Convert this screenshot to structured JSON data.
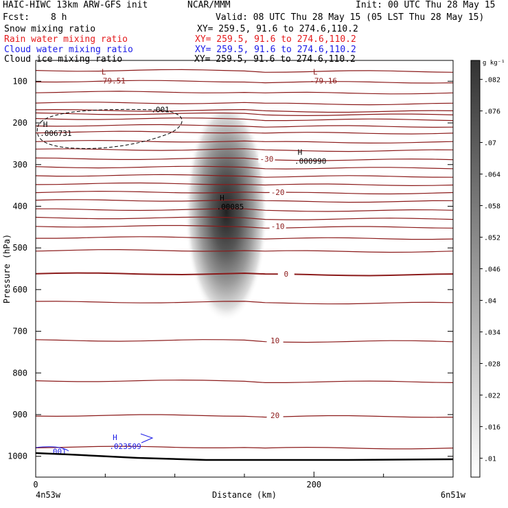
{
  "header": {
    "left_title": "HAIC-HIWC 13km ARW-GFS init",
    "center_title": "NCAR/MMM",
    "init": "Init: 00 UTC Thu 28 May 15",
    "fcst_label": "Fcst:",
    "fcst_value": "8 h",
    "valid": "Valid: 08 UTC Thu 28 May 15 (05 LST Thu 28 May 15)",
    "fields": [
      {
        "label": "Snow mixing ratio",
        "xy": "XY= 259.5, 91.6 to 274.6,110.2",
        "color": "#000000"
      },
      {
        "label": "Rain water mixing ratio",
        "xy": "XY= 259.5, 91.6 to 274.6,110.2",
        "color": "#e41a1c"
      },
      {
        "label": "Cloud water mixing ratio",
        "xy": "XY= 259.5, 91.6 to 274.6,110.2",
        "color": "#1a1ae6"
      },
      {
        "label": "Cloud ice mixing ratio",
        "xy": "XY= 259.5, 91.6 to 274.6,110.2",
        "color": "#000000"
      }
    ]
  },
  "chart_data": {
    "type": "heatmap",
    "xlabel": "Distance (km)",
    "ylabel": "Pressure (hPa)",
    "xlim": [
      0,
      300
    ],
    "ylim": [
      1050,
      50
    ],
    "x_ticks": [
      0,
      200
    ],
    "x_minor_ticks": [
      50,
      100,
      150,
      250
    ],
    "y_ticks": [
      100,
      200,
      300,
      400,
      500,
      600,
      700,
      800,
      900,
      1000
    ],
    "x_endpoint_labels": [
      "4n53w",
      "6n51w"
    ],
    "colorbar": {
      "unit": "g kg⁻¹",
      "levels": [
        ".01",
        ".016",
        ".022",
        ".028",
        ".034",
        ".04",
        ".046",
        ".052",
        ".058",
        ".064",
        ".07",
        ".076",
        ".082"
      ]
    },
    "temperature_contours": {
      "color": "#8b1a1a",
      "labels": [
        {
          "value": "-30",
          "x": 166,
          "p": 286
        },
        {
          "value": "-20",
          "x": 174,
          "p": 366
        },
        {
          "value": "-10",
          "x": 174,
          "p": 448
        },
        {
          "value": "0",
          "x": 180,
          "p": 562
        },
        {
          "value": "10",
          "x": 172,
          "p": 722
        },
        {
          "value": "20",
          "x": 172,
          "p": 902
        }
      ],
      "levels_p": [
        74,
        100,
        126,
        152,
        170,
        178,
        190,
        206,
        222,
        244,
        264,
        286,
        306,
        326,
        346,
        366,
        386,
        408,
        428,
        448,
        475,
        506,
        562,
        630,
        722,
        819,
        902,
        978
      ]
    },
    "extrema": [
      {
        "type": "L",
        "value": "-79.51",
        "x": 45,
        "p": 90,
        "color": "#8b1a1a"
      },
      {
        "type": "L",
        "value": "-79.16",
        "x": 197,
        "p": 90,
        "color": "#8b1a1a"
      },
      {
        "type": "H",
        "value": ".006731",
        "x": 3,
        "p": 216,
        "color": "#000000"
      },
      {
        "type": "H",
        "value": ".000990",
        "x": 186,
        "p": 283,
        "color": "#000000"
      },
      {
        "type": "H",
        "value": ".00085",
        "x": 130,
        "p": 393,
        "color": "#000000"
      },
      {
        "type": "H",
        "value": ".023509",
        "x": 53,
        "p": 968,
        "color": "#1a1ae6"
      }
    ],
    "snow_contour": {
      "label": ".001",
      "x": 83,
      "p": 168
    },
    "cloud_water_contour": {
      "label": ".001",
      "x": 9,
      "p": 988
    },
    "snow_max": {
      "x": 137,
      "p": 430,
      "value": 0.085
    }
  }
}
